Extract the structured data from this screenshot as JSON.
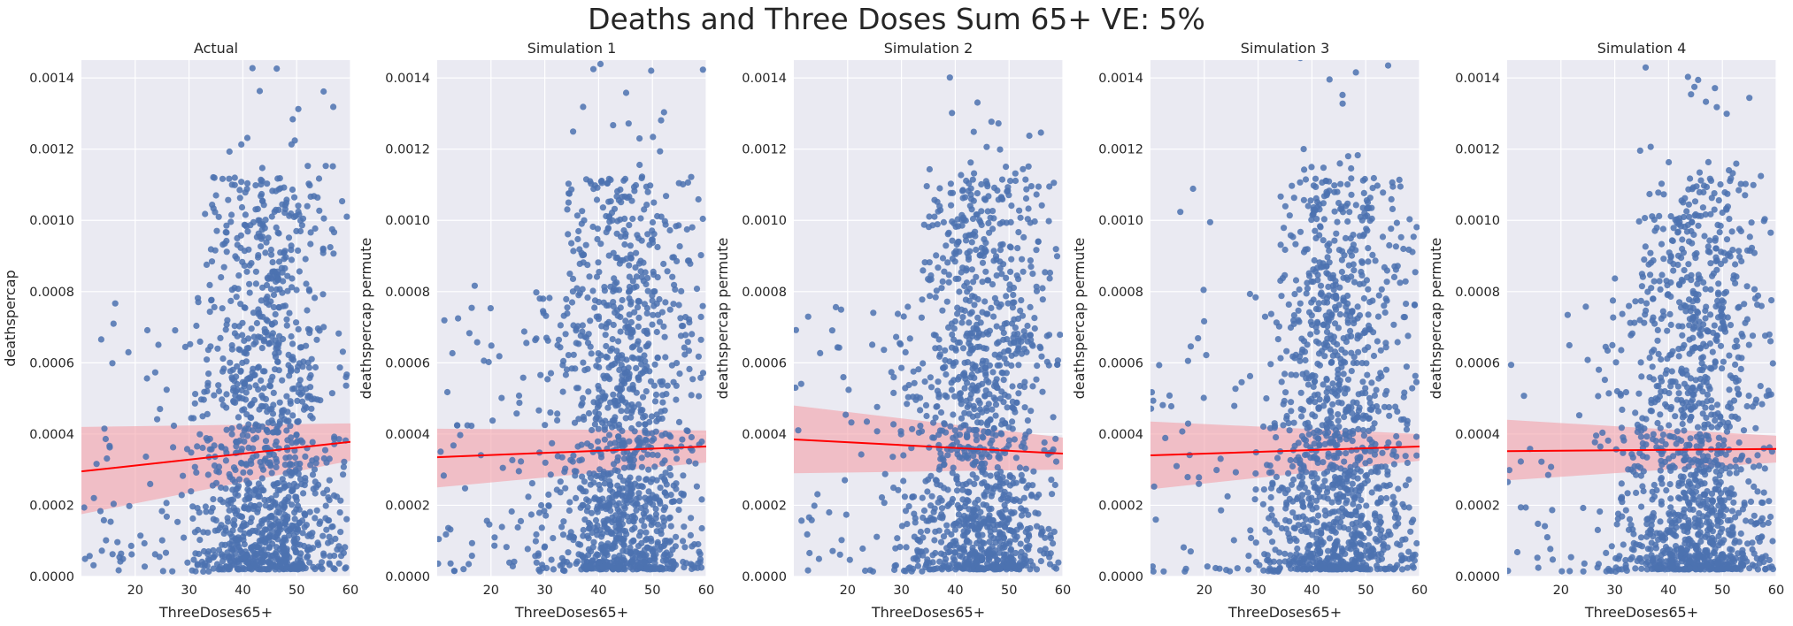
{
  "figure": {
    "title": "Deaths and Three Doses Sum 65+ VE: 5%",
    "background": "#ffffff",
    "axes_facecolor": "#eaeaf2",
    "grid_color": "#ffffff",
    "point_color": "#4c72b0",
    "line_color": "#ff0000",
    "band_color": "#f4a0a8"
  },
  "chart_data": [
    {
      "type": "scatter",
      "title": "Actual",
      "xlabel": "ThreeDoses65+",
      "ylabel": "deathspercap",
      "xlim": [
        10,
        60
      ],
      "ylim": [
        0,
        0.00145
      ],
      "xticks": [
        "20",
        "30",
        "40",
        "50",
        "60"
      ],
      "yticks": [
        "0.0000",
        "0.0002",
        "0.0004",
        "0.0006",
        "0.0008",
        "0.0010",
        "0.0012",
        "0.0014"
      ],
      "grid": true,
      "n_points": 1300,
      "regression": {
        "x": [
          10,
          60
        ],
        "y": [
          0.000295,
          0.000378
        ]
      },
      "ci_band": {
        "x": [
          10,
          60
        ],
        "lower": [
          0.000175,
          0.000325
        ],
        "upper": [
          0.00042,
          0.00043
        ]
      }
    },
    {
      "type": "scatter",
      "title": "Simulation 1",
      "xlabel": "ThreeDoses65+",
      "ylabel": "deathspercap permute",
      "xlim": [
        10,
        60
      ],
      "ylim": [
        0,
        0.00145
      ],
      "xticks": [
        "20",
        "30",
        "40",
        "50",
        "60"
      ],
      "yticks": [
        "0.0000",
        "0.0002",
        "0.0004",
        "0.0006",
        "0.0008",
        "0.0010",
        "0.0012",
        "0.0014"
      ],
      "grid": true,
      "n_points": 1300,
      "regression": {
        "x": [
          10,
          60
        ],
        "y": [
          0.000335,
          0.000365
        ]
      },
      "ci_band": {
        "x": [
          10,
          60
        ],
        "lower": [
          0.00025,
          0.00032
        ],
        "upper": [
          0.000415,
          0.00041
        ]
      }
    },
    {
      "type": "scatter",
      "title": "Simulation 2",
      "xlabel": "ThreeDoses65+",
      "ylabel": "deathspercap permute",
      "xlim": [
        10,
        60
      ],
      "ylim": [
        0,
        0.00145
      ],
      "xticks": [
        "20",
        "30",
        "40",
        "50",
        "60"
      ],
      "yticks": [
        "0.0000",
        "0.0002",
        "0.0004",
        "0.0006",
        "0.0008",
        "0.0010",
        "0.0012",
        "0.0014"
      ],
      "grid": true,
      "n_points": 1300,
      "regression": {
        "x": [
          10,
          60
        ],
        "y": [
          0.000385,
          0.000345
        ]
      },
      "ci_band": {
        "x": [
          10,
          60
        ],
        "lower": [
          0.00029,
          0.0003
        ],
        "upper": [
          0.00048,
          0.00039
        ]
      }
    },
    {
      "type": "scatter",
      "title": "Simulation 3",
      "xlabel": "ThreeDoses65+",
      "ylabel": "deathspercap permute",
      "xlim": [
        10,
        60
      ],
      "ylim": [
        0,
        0.00145
      ],
      "xticks": [
        "20",
        "30",
        "40",
        "50",
        "60"
      ],
      "yticks": [
        "0.0000",
        "0.0002",
        "0.0004",
        "0.0006",
        "0.0008",
        "0.0010",
        "0.0012",
        "0.0014"
      ],
      "grid": true,
      "n_points": 1300,
      "regression": {
        "x": [
          10,
          60
        ],
        "y": [
          0.00034,
          0.000365
        ]
      },
      "ci_band": {
        "x": [
          10,
          60
        ],
        "lower": [
          0.000245,
          0.000325
        ],
        "upper": [
          0.000435,
          0.0004
        ]
      }
    },
    {
      "type": "scatter",
      "title": "Simulation 4",
      "xlabel": "ThreeDoses65+",
      "ylabel": "deathspercap permute",
      "xlim": [
        10,
        60
      ],
      "ylim": [
        0,
        0.00145
      ],
      "xticks": [
        "20",
        "30",
        "40",
        "50",
        "60"
      ],
      "yticks": [
        "0.0000",
        "0.0002",
        "0.0004",
        "0.0006",
        "0.0008",
        "0.0010",
        "0.0012",
        "0.0014"
      ],
      "grid": true,
      "n_points": 1300,
      "regression": {
        "x": [
          10,
          60
        ],
        "y": [
          0.000352,
          0.000358
        ]
      },
      "ci_band": {
        "x": [
          10,
          60
        ],
        "lower": [
          0.00027,
          0.00032
        ],
        "upper": [
          0.00044,
          0.000395
        ]
      }
    }
  ]
}
